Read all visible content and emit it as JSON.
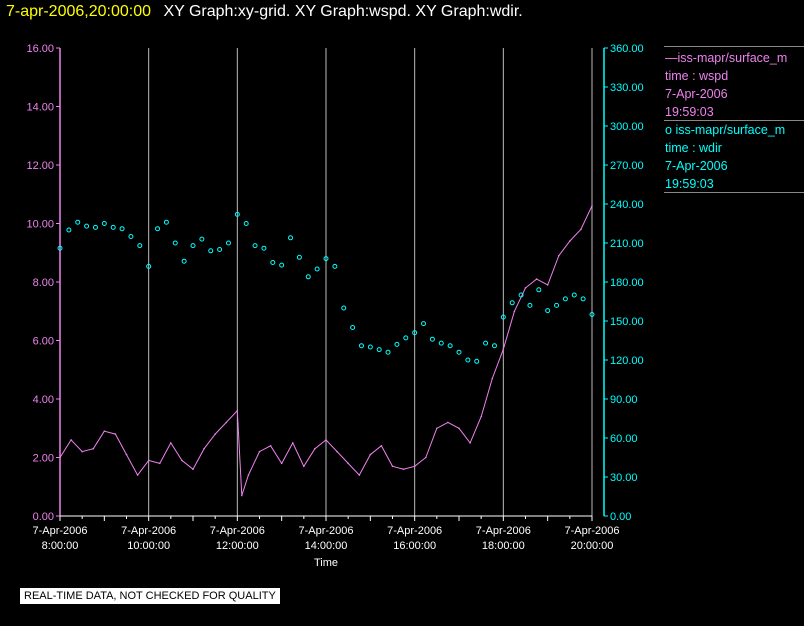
{
  "header": {
    "datetime": "7-apr-2006,20:00:00",
    "graphs": "XY Graph:xy-grid.  XY Graph:wspd.  XY Graph:wdir."
  },
  "legend": {
    "wspd": {
      "name": "iss-mapr/surface_m",
      "marker": "—",
      "field": "time : wspd",
      "date": "7-Apr-2006",
      "time": "19:59:03"
    },
    "wdir": {
      "name": "iss-mapr/surface_m",
      "marker": "o",
      "field": "time : wdir",
      "date": "7-Apr-2006",
      "time": "19:59:03"
    }
  },
  "footer": "REAL-TIME DATA, NOT CHECKED FOR QUALITY",
  "colors": {
    "background": "#000000",
    "wspd": "#ee82ee",
    "wdir": "#00ffff",
    "grid": "#bbbbbb",
    "axis_text": "#ffffff"
  },
  "chart_data": {
    "type": "line",
    "xlabel": "Time",
    "x_range_hours": [
      8,
      20
    ],
    "x_ticks": [
      {
        "hour": 8,
        "date": "7-Apr-2006",
        "time": "8:00:00"
      },
      {
        "hour": 10,
        "date": "7-Apr-2006",
        "time": "10:00:00"
      },
      {
        "hour": 12,
        "date": "7-Apr-2006",
        "time": "12:00:00"
      },
      {
        "hour": 14,
        "date": "7-Apr-2006",
        "time": "14:00:00"
      },
      {
        "hour": 16,
        "date": "7-Apr-2006",
        "time": "16:00:00"
      },
      {
        "hour": 18,
        "date": "7-Apr-2006",
        "time": "18:00:00"
      },
      {
        "hour": 20,
        "date": "7-Apr-2006",
        "time": "20:00:00"
      }
    ],
    "y_left": {
      "series": "wspd",
      "range": [
        0,
        16
      ],
      "ticks": [
        "0.00",
        "2.00",
        "4.00",
        "6.00",
        "8.00",
        "10.00",
        "12.00",
        "14.00",
        "16.00"
      ]
    },
    "y_right": {
      "series": "wdir",
      "range": [
        0,
        360
      ],
      "ticks": [
        "0.00",
        "30.00",
        "60.00",
        "90.00",
        "120.00",
        "150.00",
        "180.00",
        "210.00",
        "240.00",
        "270.00",
        "300.00",
        "330.00",
        "360.00"
      ]
    },
    "vertical_gridlines_hours": [
      10,
      12,
      14,
      16,
      18,
      20
    ],
    "series": [
      {
        "name": "wspd",
        "style": "line",
        "axis": "left",
        "x": [
          8.0,
          8.25,
          8.5,
          8.75,
          9.0,
          9.25,
          9.5,
          9.75,
          10.0,
          10.25,
          10.5,
          10.75,
          11.0,
          11.25,
          11.5,
          11.75,
          12.0,
          12.1,
          12.25,
          12.5,
          12.75,
          13.0,
          13.25,
          13.5,
          13.75,
          14.0,
          14.25,
          14.5,
          14.75,
          15.0,
          15.25,
          15.5,
          15.75,
          16.0,
          16.25,
          16.5,
          16.75,
          17.0,
          17.25,
          17.5,
          17.75,
          18.0,
          18.25,
          18.5,
          18.75,
          19.0,
          19.25,
          19.5,
          19.75,
          20.0
        ],
        "values": [
          2.0,
          2.6,
          2.2,
          2.3,
          2.9,
          2.8,
          2.1,
          1.4,
          1.9,
          1.8,
          2.5,
          1.9,
          1.6,
          2.3,
          2.8,
          3.2,
          3.6,
          0.7,
          1.4,
          2.2,
          2.4,
          1.8,
          2.5,
          1.7,
          2.3,
          2.6,
          2.2,
          1.8,
          1.4,
          2.1,
          2.4,
          1.7,
          1.6,
          1.7,
          2.0,
          3.0,
          3.2,
          3.0,
          2.5,
          3.4,
          4.7,
          5.7,
          7.0,
          7.8,
          8.1,
          7.9,
          8.9,
          9.4,
          9.8,
          10.6
        ]
      },
      {
        "name": "wdir",
        "style": "circles",
        "axis": "right",
        "x": [
          8.0,
          8.2,
          8.4,
          8.6,
          8.8,
          9.0,
          9.2,
          9.4,
          9.6,
          9.8,
          10.0,
          10.2,
          10.4,
          10.6,
          10.8,
          11.0,
          11.2,
          11.4,
          11.6,
          11.8,
          12.0,
          12.2,
          12.4,
          12.6,
          12.8,
          13.0,
          13.2,
          13.4,
          13.6,
          13.8,
          14.0,
          14.2,
          14.4,
          14.6,
          14.8,
          15.0,
          15.2,
          15.4,
          15.6,
          15.8,
          16.0,
          16.2,
          16.4,
          16.6,
          16.8,
          17.0,
          17.2,
          17.4,
          17.6,
          17.8,
          18.0,
          18.2,
          18.4,
          18.6,
          18.8,
          19.0,
          19.2,
          19.4,
          19.6,
          19.8,
          20.0
        ],
        "values": [
          206,
          220,
          226,
          223,
          222,
          225,
          222,
          221,
          215,
          208,
          192,
          221,
          226,
          210,
          196,
          208,
          213,
          204,
          205,
          210,
          232,
          225,
          208,
          206,
          195,
          193,
          214,
          199,
          184,
          190,
          198,
          192,
          160,
          145,
          131,
          130,
          128,
          126,
          132,
          137,
          141,
          148,
          136,
          133,
          131,
          126,
          120,
          119,
          133,
          131,
          153,
          164,
          170,
          162,
          174,
          158,
          162,
          167,
          170,
          167,
          155
        ]
      }
    ]
  }
}
